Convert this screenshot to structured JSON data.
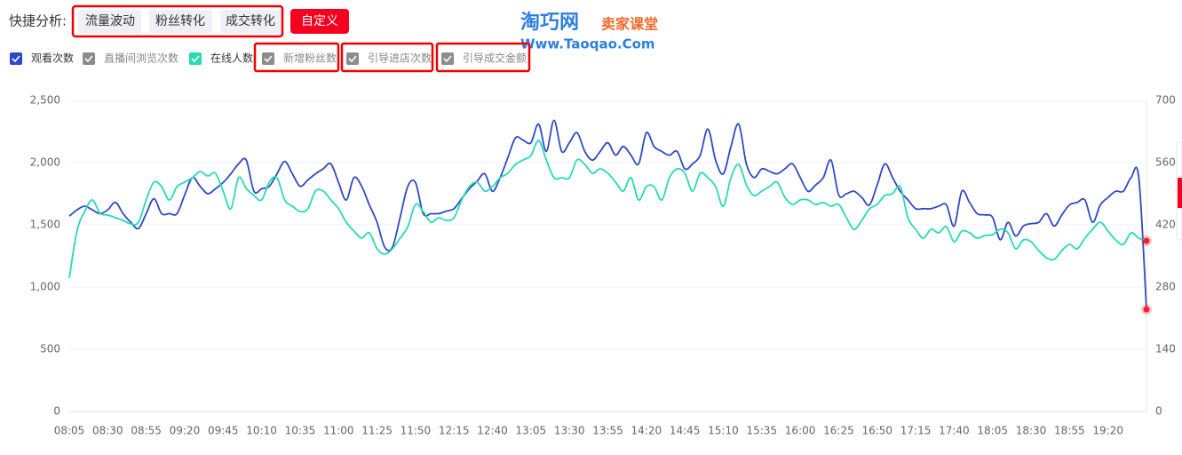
{
  "ui": {
    "quick_label": "快捷分析:",
    "quick_buttons": [
      "流量波动",
      "粉丝转化",
      "成交转化"
    ],
    "custom_button": "自定义",
    "watermark": {
      "brand": "淘巧网",
      "course": "卖家课堂",
      "url": "Www.Taoqao.Com"
    }
  },
  "chart_data": {
    "type": "line",
    "categories": [
      "08:05",
      null,
      null,
      null,
      null,
      "08:30",
      null,
      null,
      null,
      null,
      "08:55",
      null,
      null,
      null,
      null,
      "09:20",
      null,
      null,
      null,
      null,
      "09:45",
      null,
      null,
      null,
      null,
      "10:10",
      null,
      null,
      null,
      null,
      "10:35",
      null,
      null,
      null,
      null,
      "11:00",
      null,
      null,
      null,
      null,
      "11:25",
      null,
      null,
      null,
      null,
      "11:50",
      null,
      null,
      null,
      null,
      "12:15",
      null,
      null,
      null,
      null,
      "12:40",
      null,
      null,
      null,
      null,
      "13:05",
      null,
      null,
      null,
      null,
      "13:30",
      null,
      null,
      null,
      null,
      "13:55",
      null,
      null,
      null,
      null,
      "14:20",
      null,
      null,
      null,
      null,
      "14:45",
      null,
      null,
      null,
      null,
      "15:10",
      null,
      null,
      null,
      null,
      "15:35",
      null,
      null,
      null,
      null,
      "16:00",
      null,
      null,
      null,
      null,
      "16:25",
      null,
      null,
      null,
      null,
      "16:50",
      null,
      null,
      null,
      null,
      "17:15",
      null,
      null,
      null,
      null,
      "17:40",
      null,
      null,
      null,
      null,
      "18:05",
      null,
      null,
      null,
      null,
      "18:30",
      null,
      null,
      null,
      null,
      "18:55",
      null,
      null,
      null,
      null,
      "19:20",
      null,
      null,
      null,
      null,
      null
    ],
    "series": [
      {
        "name": "观看次数",
        "color": "#2f49c5",
        "values": [
          1570,
          1620,
          1650,
          1620,
          1590,
          1620,
          1680,
          1590,
          1520,
          1470,
          1590,
          1710,
          1590,
          1590,
          1590,
          1740,
          1880,
          1810,
          1750,
          1790,
          1840,
          1910,
          1990,
          2020,
          1770,
          1790,
          1810,
          1910,
          2010,
          1910,
          1810,
          1860,
          1910,
          1950,
          1990,
          1840,
          1700,
          1880,
          1810,
          1660,
          1520,
          1320,
          1320,
          1560,
          1810,
          1840,
          1590,
          1590,
          1590,
          1610,
          1630,
          1710,
          1790,
          1850,
          1910,
          1770,
          1880,
          2040,
          2200,
          2180,
          2160,
          2310,
          2090,
          2340,
          2090,
          2160,
          2240,
          2090,
          2020,
          2090,
          2160,
          2060,
          2130,
          2060,
          1990,
          2240,
          2130,
          2090,
          2060,
          2090,
          1950,
          1990,
          2060,
          2270,
          2020,
          1910,
          2130,
          2310,
          1990,
          1880,
          1950,
          1930,
          1910,
          1950,
          1990,
          1880,
          1770,
          1820,
          1880,
          2020,
          1740,
          1750,
          1770,
          1720,
          1660,
          1820,
          1990,
          1880,
          1770,
          1700,
          1630,
          1630,
          1630,
          1650,
          1660,
          1490,
          1770,
          1680,
          1590,
          1580,
          1560,
          1380,
          1520,
          1410,
          1490,
          1510,
          1520,
          1590,
          1490,
          1580,
          1660,
          1680,
          1700,
          1520,
          1660,
          1720,
          1770,
          1770,
          1880,
          1880,
          820
        ]
      },
      {
        "name": "在线人数",
        "color": "#25dbb4",
        "axis": "y2",
        "values": [
          300,
          406,
          450,
          476,
          446,
          442,
          436,
          430,
          422,
          426,
          476,
          516,
          506,
          476,
          506,
          516,
          526,
          540,
          530,
          536,
          496,
          456,
          526,
          502,
          486,
          476,
          516,
          526,
          476,
          462,
          450,
          456,
          496,
          496,
          476,
          456,
          426,
          406,
          390,
          402,
          366,
          354,
          366,
          390,
          416,
          466,
          450,
          426,
          436,
          430,
          436,
          476,
          506,
          516,
          496,
          506,
          526,
          536,
          556,
          566,
          576,
          610,
          566,
          526,
          526,
          526,
          566,
          556,
          536,
          546,
          536,
          516,
          496,
          526,
          476,
          506,
          506,
          476,
          526,
          546,
          536,
          496,
          536,
          526,
          506,
          462,
          526,
          556,
          510,
          486,
          496,
          506,
          516,
          482,
          466,
          476,
          476,
          466,
          470,
          462,
          466,
          436,
          410,
          430,
          456,
          466,
          486,
          490,
          506,
          436,
          410,
          390,
          410,
          402,
          416,
          382,
          406,
          402,
          390,
          396,
          398,
          410,
          402,
          366,
          386,
          382,
          362,
          346,
          342,
          362,
          376,
          366,
          390,
          410,
          426,
          406,
          386,
          376,
          402,
          390,
          384
        ]
      }
    ],
    "legend_extra": [
      {
        "name": "直播间浏览次数",
        "color": "#8c8c8c"
      },
      {
        "name": "新增粉丝数",
        "color": "#8c8c8c"
      },
      {
        "name": "引导进店次数",
        "color": "#8c8c8c"
      },
      {
        "name": "引导成交金额",
        "color": "#8c8c8c"
      }
    ],
    "ylim": [
      0,
      2500
    ],
    "yticks": [
      0,
      500,
      {
        "value": 1000,
        "label": "1,000"
      },
      {
        "value": 1500,
        "label": "1,500"
      },
      {
        "value": 2000,
        "label": "2,000"
      },
      {
        "value": 2500,
        "label": "2,500"
      }
    ],
    "y2lim": [
      0,
      700
    ],
    "y2ticks": [
      0,
      140,
      280,
      420,
      560,
      700
    ],
    "grid": true,
    "end_marker_color": "#f5222d"
  }
}
